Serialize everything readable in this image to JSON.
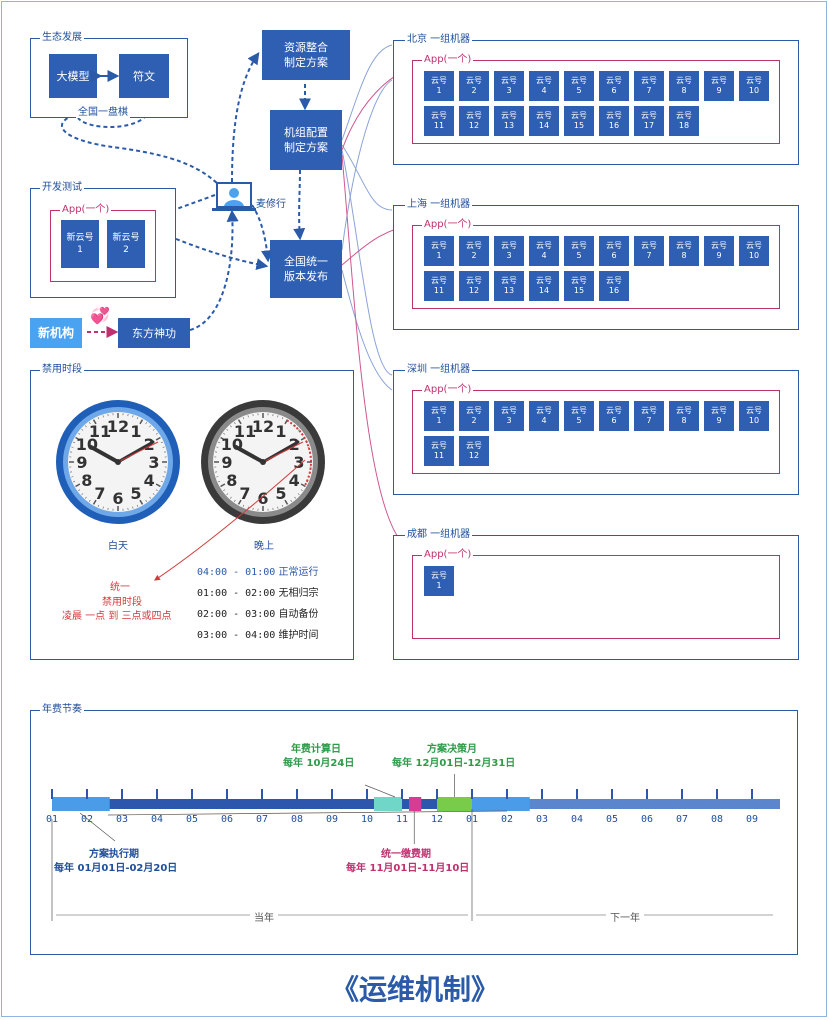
{
  "ecosystem": {
    "title": "生态发展",
    "large_model": "大模型",
    "rune": "符文",
    "swap_icon": "double-arrow-icon",
    "national_board": "全国一盘棋"
  },
  "devtest": {
    "title": "开发测试",
    "app_title": "App(一个)",
    "cells": [
      "新云号\n1",
      "新云号\n2"
    ]
  },
  "new_org": {
    "label": "新机构",
    "heart_icon": "hearts-icon",
    "target": "东方神功"
  },
  "flow": {
    "resource": "资源整合\n制定方案",
    "machine": "机组配置\n制定方案",
    "release": "全国统一\n版本发布",
    "person_icon": "user-icon",
    "person_name": "麦修行"
  },
  "cities": [
    {
      "title": "北京  一组机器",
      "app_title": "App(一个)",
      "count": 18
    },
    {
      "title": "上海  一组机器",
      "app_title": "App(一个)",
      "count": 16
    },
    {
      "title": "深圳  一组机器",
      "app_title": "App(一个)",
      "count": 12
    },
    {
      "title": "成都  一组机器",
      "app_title": "App(一个)",
      "count": 1
    }
  ],
  "cell_prefix": "云号",
  "forbidden": {
    "title": "禁用时段",
    "day_label": "白天",
    "night_label": "晚上",
    "unified_lines": [
      "统一",
      "禁用时段",
      "凌晨 一点 到 三点或四点"
    ],
    "schedule": [
      {
        "time": "04:00 - 01:00",
        "desc": "正常运行"
      },
      {
        "time": "01:00 - 02:00",
        "desc": "无相归宗"
      },
      {
        "time": "02:00 - 03:00",
        "desc": "自动备份"
      },
      {
        "time": "03:00 - 04:00",
        "desc": "维护时间"
      }
    ],
    "clock_numbers": [
      "12",
      "1",
      "2",
      "3",
      "4",
      "5",
      "6",
      "7",
      "8",
      "9",
      "10",
      "11"
    ]
  },
  "annual": {
    "title": "年费节奏",
    "months": [
      "01",
      "02",
      "03",
      "04",
      "05",
      "06",
      "07",
      "08",
      "09",
      "10",
      "11",
      "12",
      "01",
      "02",
      "03",
      "04",
      "05",
      "06",
      "07",
      "08",
      "09"
    ],
    "calc_day_title": "年费计算日",
    "calc_day_value": "每年  10月24日",
    "decision_title": "方案决策月",
    "decision_value": "每年  12月01日-12月31日",
    "exec_title": "方案执行期",
    "exec_value": "每年  01月01日-02月20日",
    "payment_title": "统一缴费期",
    "payment_value": "每年  11月01日-11月10日",
    "this_year": "当年",
    "next_year": "下一年",
    "colors": {
      "exec": "#4a9be8",
      "calc": "#6fd6c8",
      "payment": "#d63c96",
      "decision": "#79cc4a",
      "main": "#2c57ad",
      "next": "#5b85cc"
    }
  },
  "footer_title": "《运维机制》"
}
